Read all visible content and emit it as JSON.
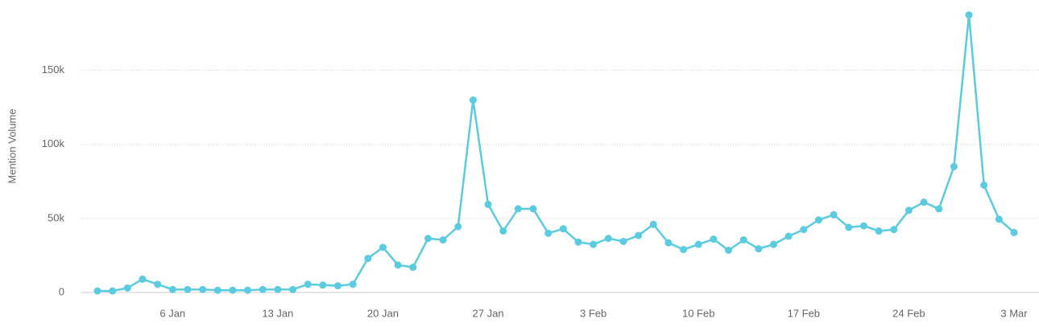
{
  "chart_data": {
    "type": "line",
    "y_label": "Mention Volume",
    "categories": [
      null,
      null,
      null,
      null,
      null,
      "6 Jan",
      null,
      null,
      null,
      null,
      null,
      null,
      "13 Jan",
      null,
      null,
      null,
      null,
      null,
      null,
      "20 Jan",
      null,
      null,
      null,
      null,
      null,
      null,
      "27 Jan",
      null,
      null,
      null,
      null,
      null,
      null,
      "3 Feb",
      null,
      null,
      null,
      null,
      null,
      null,
      "10 Feb",
      null,
      null,
      null,
      null,
      null,
      null,
      "17 Feb",
      null,
      null,
      null,
      null,
      null,
      null,
      "24 Feb",
      null,
      null,
      null,
      null,
      null,
      null,
      "3 Mar"
    ],
    "series": [
      {
        "name": "Mention Volume",
        "color": "#5bcbe0",
        "values": [
          1000,
          1000,
          3000,
          9000,
          5500,
          2000,
          2000,
          2000,
          1500,
          1500,
          1500,
          2000,
          2000,
          2000,
          5500,
          5000,
          4500,
          5500,
          23000,
          30500,
          18500,
          17000,
          36500,
          35500,
          44500,
          130000,
          59500,
          41500,
          56500,
          56500,
          40000,
          43000,
          34000,
          32500,
          36500,
          34500,
          38500,
          46000,
          33500,
          29000,
          32500,
          36000,
          28500,
          35500,
          29500,
          32500,
          38000,
          42500,
          49000,
          52500,
          44000,
          45000,
          41500,
          42500,
          55500,
          61000,
          56500,
          85000,
          187500,
          72500,
          49500,
          40500
        ]
      }
    ],
    "ylim": [
      0,
      190000
    ],
    "yticks": [
      0,
      {
        "value": 50000,
        "label": "50k"
      },
      {
        "value": 100000,
        "label": "100k"
      },
      {
        "value": 150000,
        "label": "150k"
      }
    ],
    "grid": true
  }
}
